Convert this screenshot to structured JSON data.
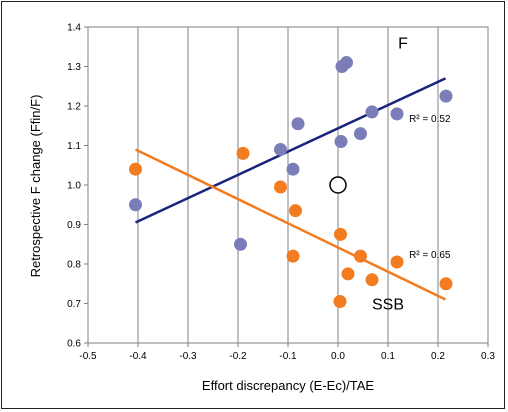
{
  "chart_data": {
    "type": "scatter",
    "xlabel": "Effort discrepancy (E-Ec)/TAE",
    "ylabel": "Retrospective F change (Ffin/F)",
    "xlim": [
      -0.5,
      0.3
    ],
    "ylim": [
      0.6,
      1.4
    ],
    "x_ticks": [
      "-0.5",
      "-0.4",
      "-0.3",
      "-0.2",
      "-0.1",
      "0.0",
      "0.1",
      "0.2",
      "0.3"
    ],
    "y_ticks": [
      "0.6",
      "0.7",
      "0.8",
      "0.9",
      "1.0",
      "1.1",
      "1.2",
      "1.3",
      "1.4"
    ],
    "grid": "vertical gridlines",
    "series": [
      {
        "name": "F",
        "color": "#7b7db8",
        "points": [
          {
            "x": -0.405,
            "y": 0.95
          },
          {
            "x": -0.195,
            "y": 0.85
          },
          {
            "x": -0.115,
            "y": 1.09
          },
          {
            "x": -0.09,
            "y": 1.04
          },
          {
            "x": -0.08,
            "y": 1.155
          },
          {
            "x": 0.008,
            "y": 1.3
          },
          {
            "x": 0.017,
            "y": 1.31
          },
          {
            "x": 0.006,
            "y": 1.11
          },
          {
            "x": 0.045,
            "y": 1.13
          },
          {
            "x": 0.068,
            "y": 1.185
          },
          {
            "x": 0.118,
            "y": 1.18
          },
          {
            "x": 0.216,
            "y": 1.225
          }
        ],
        "trend": {
          "x": [
            -0.405,
            0.215
          ],
          "y": [
            0.905,
            1.27
          ],
          "color": "#1a237e",
          "r2_label": "R² = 0.52"
        }
      },
      {
        "name": "SSB",
        "color": "#f47c20",
        "points": [
          {
            "x": -0.405,
            "y": 1.04
          },
          {
            "x": -0.19,
            "y": 1.08
          },
          {
            "x": -0.115,
            "y": 0.995
          },
          {
            "x": -0.085,
            "y": 0.935
          },
          {
            "x": -0.09,
            "y": 0.82
          },
          {
            "x": 0.005,
            "y": 0.875
          },
          {
            "x": 0.02,
            "y": 0.775
          },
          {
            "x": 0.045,
            "y": 0.82
          },
          {
            "x": 0.068,
            "y": 0.76
          },
          {
            "x": 0.118,
            "y": 0.805
          },
          {
            "x": 0.004,
            "y": 0.705
          },
          {
            "x": 0.216,
            "y": 0.75
          }
        ],
        "trend": {
          "x": [
            -0.405,
            0.215
          ],
          "y": [
            1.09,
            0.71
          ],
          "color": "#f47c20",
          "r2_label": "R² = 0.65"
        }
      }
    ],
    "reference_point": {
      "x": 0.0,
      "y": 1.0
    },
    "annotations": [
      {
        "text": "F",
        "x": 0.13,
        "y": 1.345
      },
      {
        "text": "SSB",
        "x": 0.1,
        "y": 0.685
      }
    ]
  }
}
